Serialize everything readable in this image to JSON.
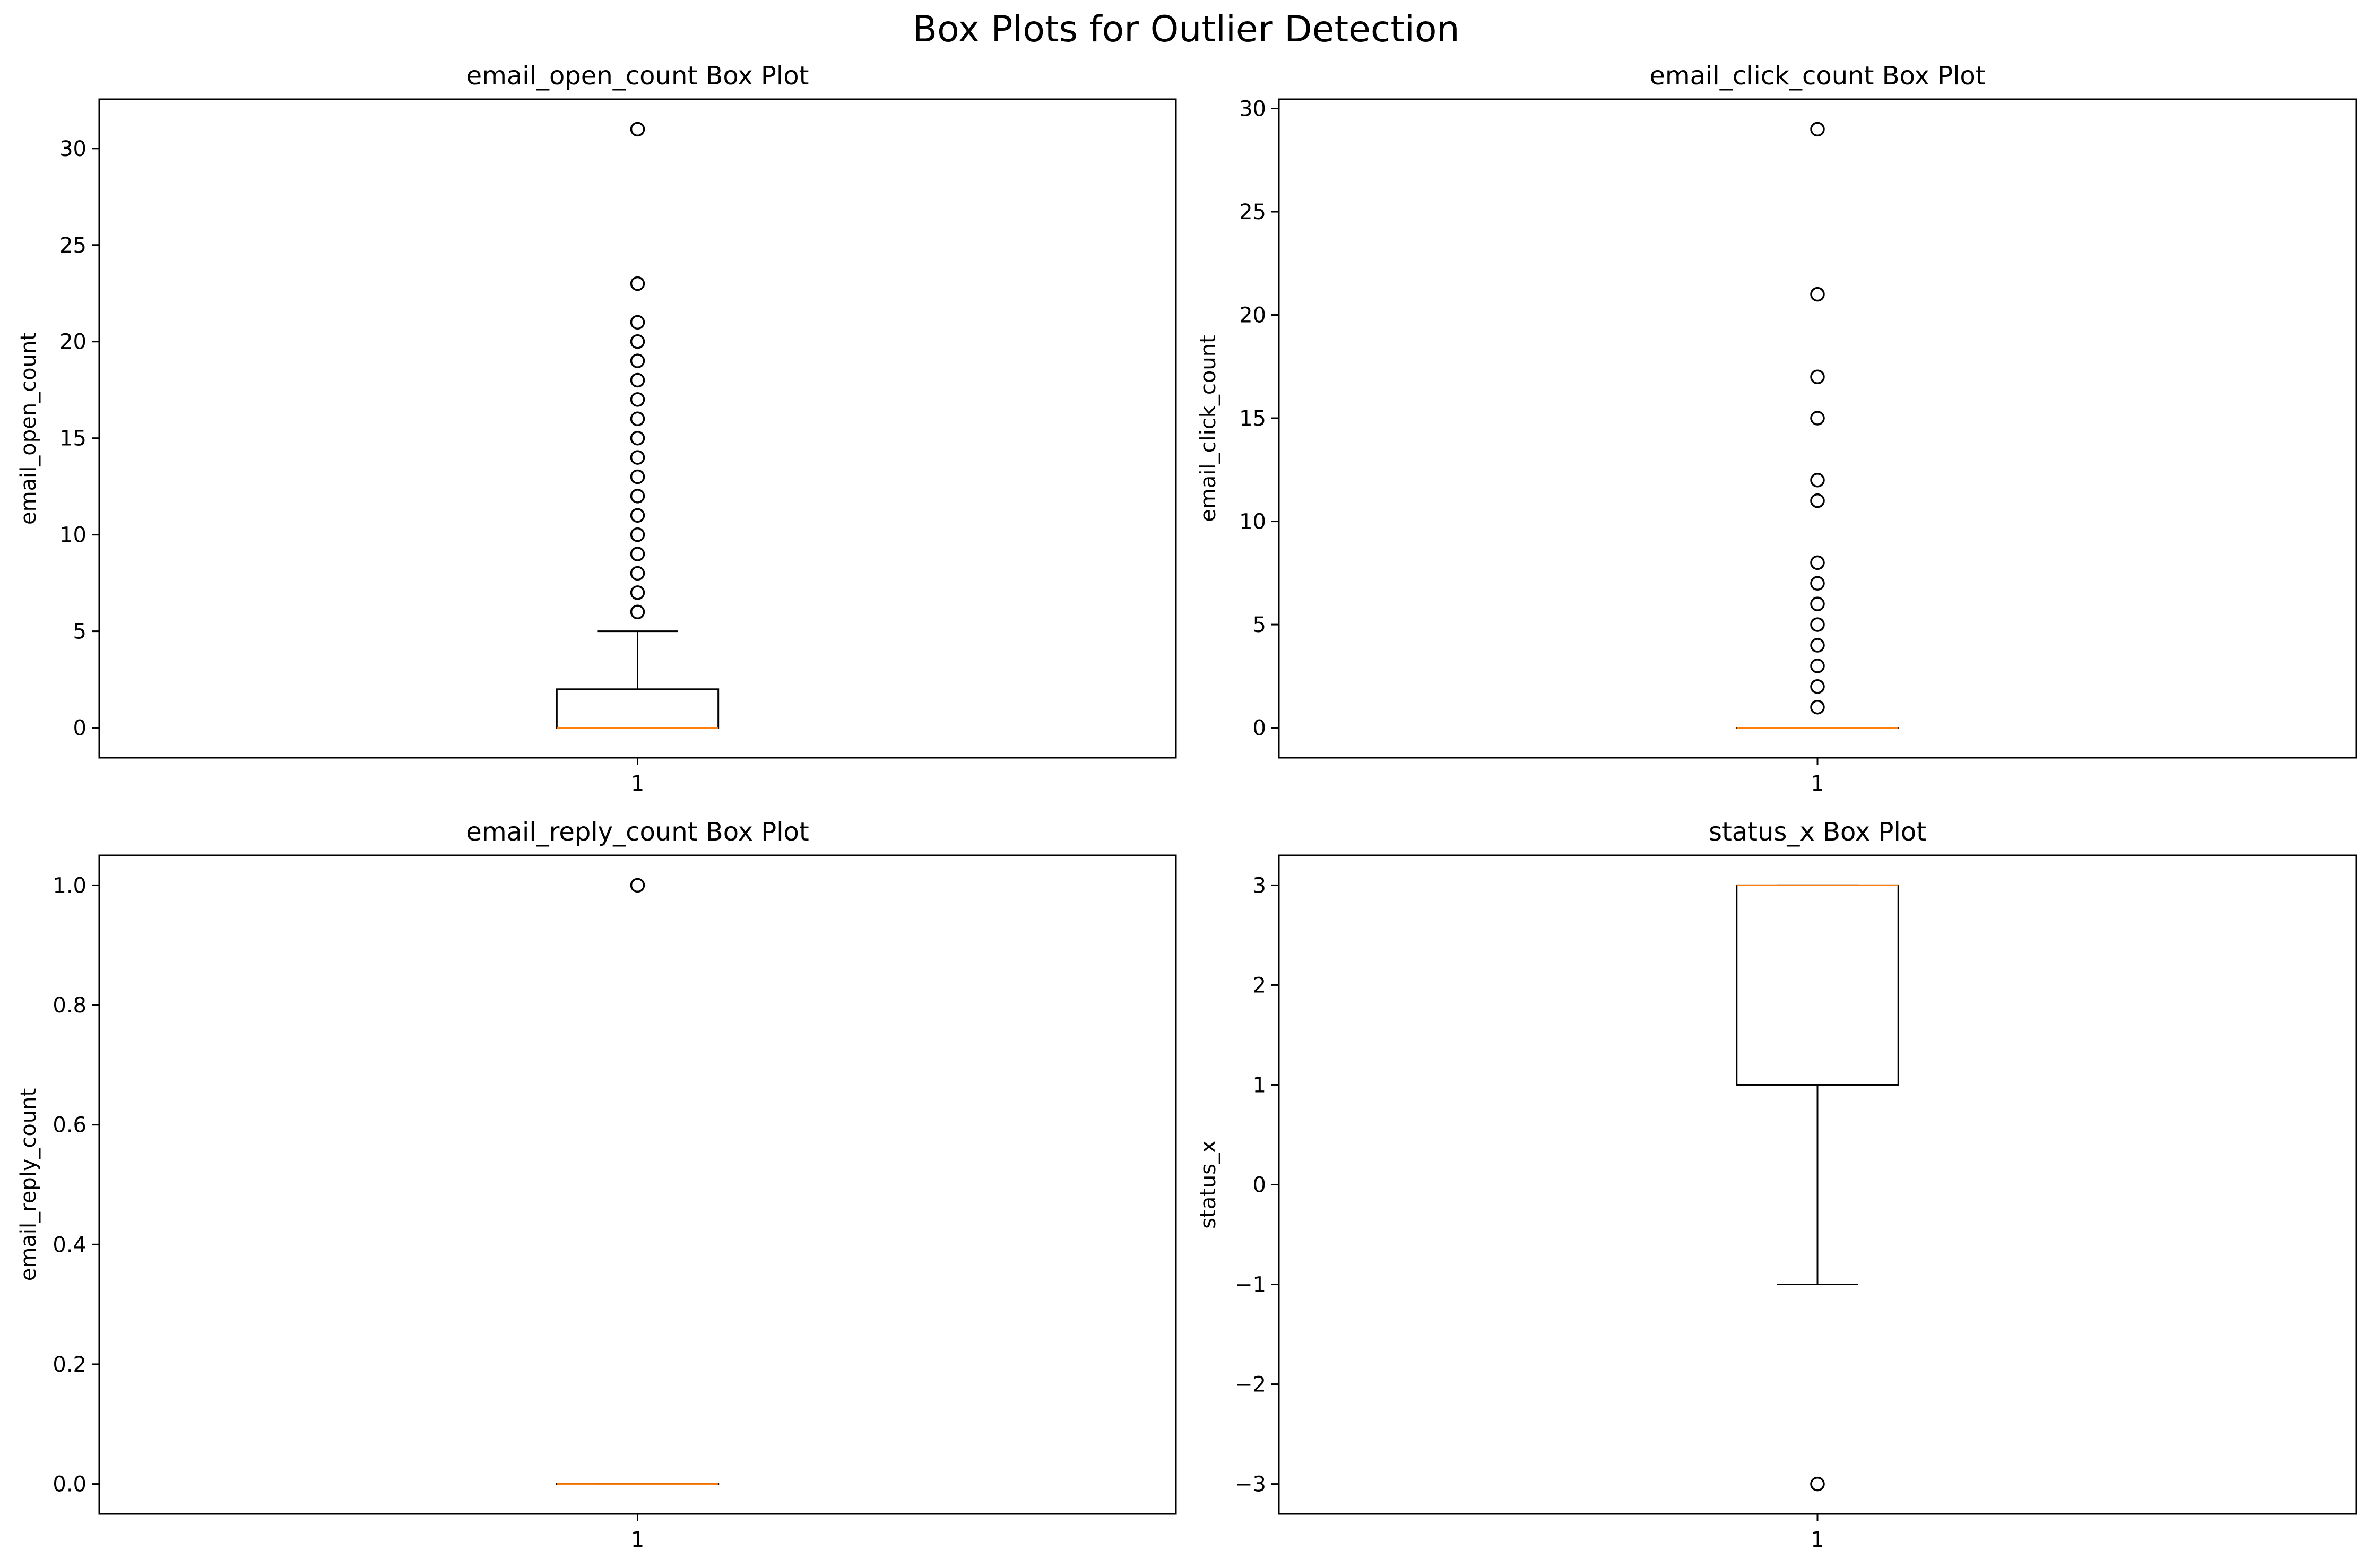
{
  "figure_title": "Box Plots for Outlier Detection",
  "chart_data": [
    {
      "type": "box",
      "title": "email_open_count Box Plot",
      "xlabel": "",
      "ylabel": "email_open_count",
      "categories": [
        "1"
      ],
      "ylim": [
        -1.55,
        32.55
      ],
      "yticks": [
        0,
        5,
        10,
        15,
        20,
        25,
        30
      ],
      "ytick_labels": [
        "0",
        "5",
        "10",
        "15",
        "20",
        "25",
        "30"
      ],
      "box": {
        "whisker_low": 0,
        "q1": 0,
        "median": 0,
        "q3": 2,
        "whisker_high": 5
      },
      "outliers": [
        6,
        7,
        8,
        9,
        10,
        11,
        12,
        13,
        14,
        15,
        16,
        17,
        18,
        19,
        20,
        21,
        23,
        31
      ],
      "grid": false
    },
    {
      "type": "box",
      "title": "email_click_count Box Plot",
      "xlabel": "",
      "ylabel": "email_click_count",
      "categories": [
        "1"
      ],
      "ylim": [
        -1.45,
        30.45
      ],
      "yticks": [
        0,
        5,
        10,
        15,
        20,
        25,
        30
      ],
      "ytick_labels": [
        "0",
        "5",
        "10",
        "15",
        "20",
        "25",
        "30"
      ],
      "box": {
        "whisker_low": 0,
        "q1": 0,
        "median": 0,
        "q3": 0,
        "whisker_high": 0
      },
      "outliers": [
        1,
        2,
        3,
        4,
        5,
        6,
        7,
        8,
        11,
        12,
        15,
        17,
        21,
        29
      ],
      "grid": false
    },
    {
      "type": "box",
      "title": "email_reply_count Box Plot",
      "xlabel": "",
      "ylabel": "email_reply_count",
      "categories": [
        "1"
      ],
      "ylim": [
        -0.05,
        1.05
      ],
      "yticks": [
        0,
        0.2,
        0.4,
        0.6,
        0.8,
        1.0
      ],
      "ytick_labels": [
        "0.0",
        "0.2",
        "0.4",
        "0.6",
        "0.8",
        "1.0"
      ],
      "box": {
        "whisker_low": 0,
        "q1": 0,
        "median": 0,
        "q3": 0,
        "whisker_high": 0
      },
      "outliers": [
        1
      ],
      "grid": false
    },
    {
      "type": "box",
      "title": "status_x Box Plot",
      "xlabel": "",
      "ylabel": "status_x",
      "categories": [
        "1"
      ],
      "ylim": [
        -3.3,
        3.3
      ],
      "yticks": [
        -3,
        -2,
        -1,
        0,
        1,
        2,
        3
      ],
      "ytick_labels": [
        "−3",
        "−2",
        "−1",
        "0",
        "1",
        "2",
        "3"
      ],
      "box": {
        "whisker_low": -1,
        "q1": 1,
        "median": 3,
        "q3": 3,
        "whisker_high": 3
      },
      "outliers": [
        -3
      ],
      "grid": false
    }
  ],
  "colors": {
    "median": "#ff7f0e",
    "box": "#000000",
    "background": "#ffffff"
  }
}
